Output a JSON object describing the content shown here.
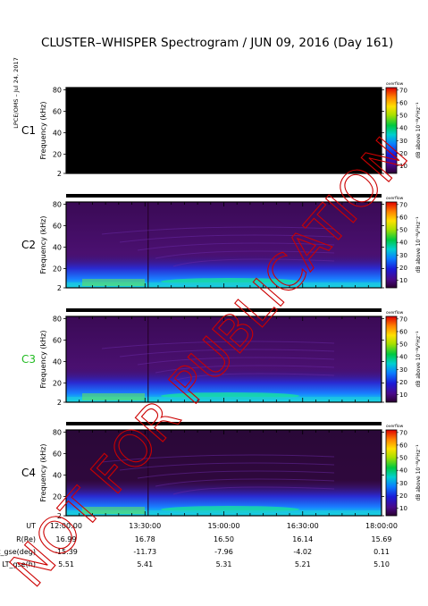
{
  "title": "CLUSTER–WHISPER Spectrogram / JUN 09, 2016 (Day 161)",
  "side_label": "LPCE/OMS – Jul 24, 2017",
  "watermark": "NOT FOR PUBLICATION",
  "colors": {
    "frame": "#000000",
    "watermark": "#cc0000",
    "c3_label": "#22bb22"
  },
  "chart_data": [
    {
      "type": "heatmap",
      "name": "C1",
      "label": "C1",
      "label_color": "#000000",
      "ylabel": "Frequency (kHz)",
      "yticks": [
        2,
        20,
        40,
        60,
        80
      ],
      "ylim": [
        2,
        82
      ],
      "xlim": [
        "12:00:00",
        "18:00:00"
      ],
      "state": "no data (black)",
      "colorbar": {
        "label": "dB above 10⁻⁸V²Hz⁻¹",
        "ticks": [
          10,
          20,
          30,
          40,
          50,
          60,
          70
        ],
        "top_text": "overflow"
      }
    },
    {
      "type": "heatmap",
      "name": "C2",
      "label": "C2",
      "label_color": "#000000",
      "ylabel": "Frequency (kHz)",
      "yticks": [
        2,
        20,
        40,
        60,
        80
      ],
      "ylim": [
        2,
        82
      ],
      "xlim": [
        "12:00:00",
        "18:00:00"
      ],
      "state": "wideband emission below 20 kHz",
      "colorbar": {
        "label": "dB above 10⁻⁸V²Hz⁻¹",
        "ticks": [
          10,
          20,
          30,
          40,
          50,
          60,
          70
        ],
        "top_text": "overflow"
      }
    },
    {
      "type": "heatmap",
      "name": "C3",
      "label": "C3",
      "label_color": "#22bb22",
      "ylabel": "Frequency (kHz)",
      "yticks": [
        2,
        20,
        40,
        60,
        80
      ],
      "ylim": [
        2,
        82
      ],
      "xlim": [
        "12:00:00",
        "18:00:00"
      ],
      "state": "wideband emission below 20 kHz",
      "colorbar": {
        "label": "dB above 10⁻⁸V²Hz⁻¹",
        "ticks": [
          10,
          20,
          30,
          40,
          50,
          60,
          70
        ],
        "top_text": "overflow"
      }
    },
    {
      "type": "heatmap",
      "name": "C4",
      "label": "C4",
      "label_color": "#000000",
      "ylabel": "Frequency (kHz)",
      "yticks": [
        2,
        20,
        40,
        60,
        80
      ],
      "ylim": [
        2,
        82
      ],
      "xlim": [
        "12:00:00",
        "18:00:00"
      ],
      "state": "wideband emission below 20 kHz",
      "colorbar": {
        "label": "dB above 10⁻⁸V²Hz⁻¹",
        "ticks": [
          10,
          20,
          30,
          40,
          50,
          60,
          70
        ],
        "top_text": "overflow"
      }
    }
  ],
  "ephemeris": {
    "rows": [
      {
        "label": "UT",
        "values": [
          "12:00:00",
          "13:30:00",
          "15:00:00",
          "16:30:00",
          "18:00:00"
        ]
      },
      {
        "label": "R(Re)",
        "values": [
          "16.99",
          "16.78",
          "16.50",
          "16.14",
          "15.69"
        ]
      },
      {
        "label": "Lat_gse(deg)",
        "values": [
          "-15.39",
          "-11.73",
          "-7.96",
          "-4.02",
          "0.11"
        ]
      },
      {
        "label": "LT_gse(h)",
        "values": [
          "5.51",
          "5.41",
          "5.31",
          "5.21",
          "5.10"
        ]
      }
    ]
  }
}
